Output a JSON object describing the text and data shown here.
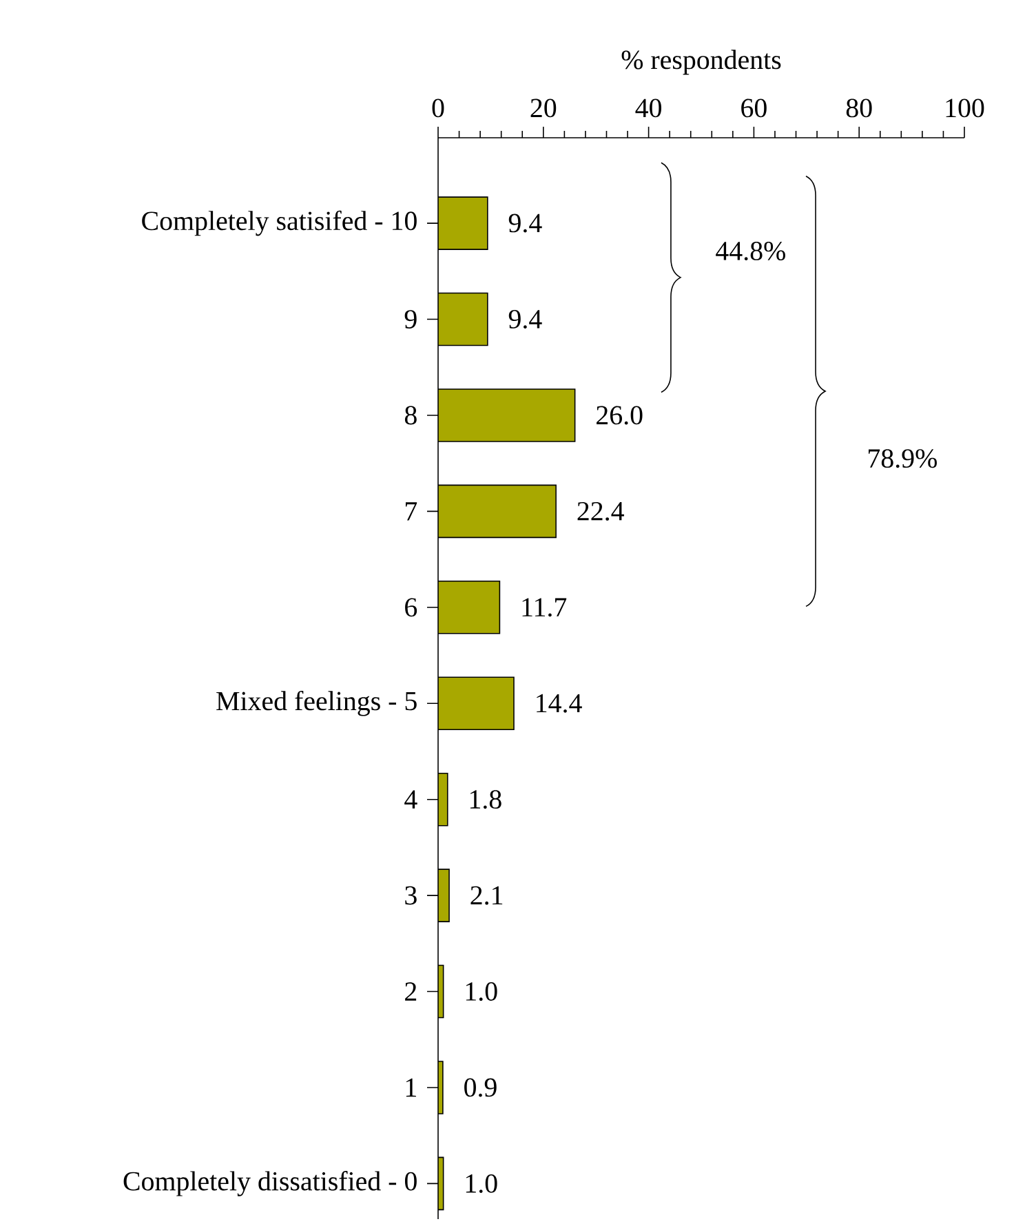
{
  "chart_data": {
    "type": "bar",
    "orientation": "horizontal",
    "xlabel": "% respondents",
    "categories": [
      "Completely satisifed - 10",
      "9",
      "8",
      "7",
      "6",
      "Mixed feelings - 5",
      "4",
      "3",
      "2",
      "1",
      "Completely dissatisfied - 0"
    ],
    "values": [
      9.4,
      9.4,
      26.0,
      22.4,
      11.7,
      14.4,
      1.8,
      2.1,
      1.0,
      0.9,
      1.0
    ],
    "value_labels": [
      "9.4",
      "9.4",
      "26.0",
      "22.4",
      "11.7",
      "14.4",
      "1.8",
      "2.1",
      "1.0",
      "0.9",
      "1.0"
    ],
    "color": "#a8a800",
    "xlim": [
      0,
      100
    ],
    "xticks": [
      0,
      20,
      40,
      60,
      80,
      100
    ],
    "annotations": [
      "44.8%",
      "78.9%"
    ],
    "grid": false
  }
}
